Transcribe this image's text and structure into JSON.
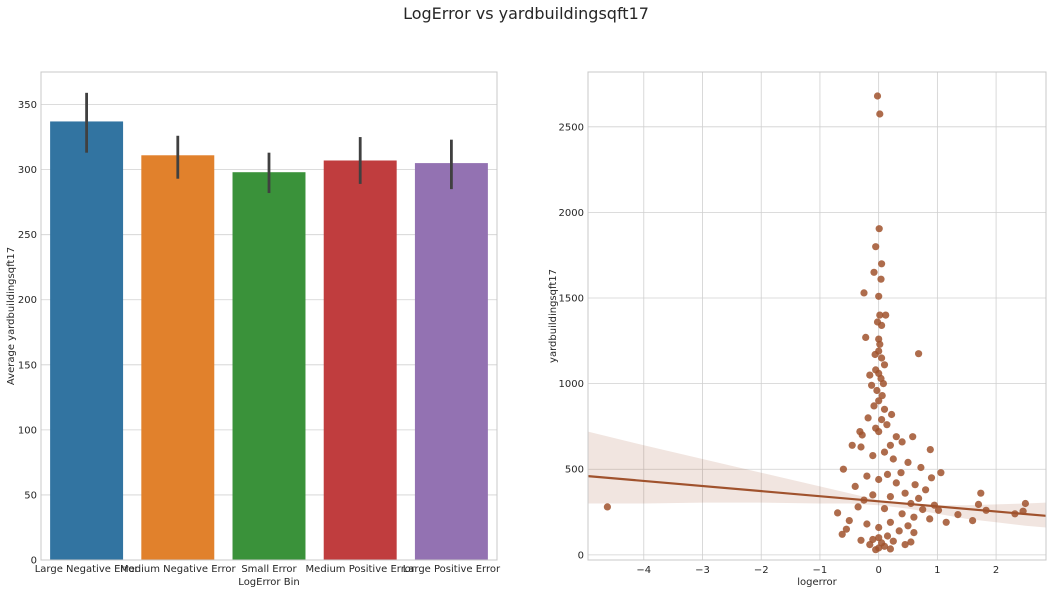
{
  "title": "LogError vs yardbuildingsqft17",
  "chart_data": [
    {
      "type": "bar",
      "xlabel": "LogError Bin",
      "ylabel": "Average yardbuildingsqft17",
      "ylim": [
        0,
        375
      ],
      "yticks": [
        0,
        50,
        100,
        150,
        200,
        250,
        300,
        350
      ],
      "grid": true,
      "categories": [
        "Large Negative Error",
        "Medium Negative Error",
        "Small Error",
        "Medium Positive Error",
        "Large Positive Error"
      ],
      "values": [
        337,
        311,
        298,
        307,
        305
      ],
      "ci_low": [
        313,
        293,
        282,
        289,
        285
      ],
      "ci_high": [
        359,
        326,
        313,
        325,
        323
      ],
      "colors": [
        "#3274a1",
        "#e1812c",
        "#3a923a",
        "#c03d3e",
        "#9372b2"
      ],
      "errorbar_color": "#404040"
    },
    {
      "type": "scatter",
      "xlabel": "logerror",
      "ylabel": "yardbuildingsqft17",
      "xlim": [
        -4.95,
        2.85
      ],
      "ylim": [
        -30,
        2820
      ],
      "xticks": [
        -4,
        -3,
        -2,
        -1,
        0,
        1,
        2
      ],
      "yticks": [
        0,
        500,
        1000,
        1500,
        2000,
        2500
      ],
      "grid": true,
      "color": "#a0522d",
      "regression": {
        "x": [
          -4.95,
          2.85
        ],
        "y": [
          460,
          228
        ]
      },
      "confidence_band": {
        "x": [
          -4.95,
          -4,
          -3,
          -2,
          -1,
          -0.5,
          0,
          0.5,
          1,
          1.5,
          2,
          2.5,
          2.85
        ],
        "upper": [
          720,
          640,
          560,
          480,
          400,
          360,
          320,
          300,
          290,
          290,
          295,
          300,
          305
        ],
        "lower": [
          300,
          300,
          305,
          305,
          300,
          300,
          290,
          270,
          240,
          210,
          190,
          170,
          160
        ]
      },
      "points": [
        [
          -0.02,
          2680
        ],
        [
          0.02,
          2575
        ],
        [
          0.01,
          1905
        ],
        [
          -0.05,
          1800
        ],
        [
          0.05,
          1700
        ],
        [
          0.04,
          1610
        ],
        [
          -0.08,
          1650
        ],
        [
          -0.25,
          1530
        ],
        [
          0.0,
          1510
        ],
        [
          0.02,
          1400
        ],
        [
          0.12,
          1400
        ],
        [
          -0.02,
          1360
        ],
        [
          0.05,
          1340
        ],
        [
          -0.22,
          1270
        ],
        [
          0.0,
          1260
        ],
        [
          0.02,
          1230
        ],
        [
          0.68,
          1175
        ],
        [
          0.0,
          1190
        ],
        [
          -0.06,
          1170
        ],
        [
          0.05,
          1150
        ],
        [
          0.1,
          1110
        ],
        [
          -0.05,
          1080
        ],
        [
          0.0,
          1060
        ],
        [
          -0.15,
          1050
        ],
        [
          0.04,
          1030
        ],
        [
          0.08,
          1000
        ],
        [
          -0.12,
          990
        ],
        [
          -0.03,
          960
        ],
        [
          0.06,
          930
        ],
        [
          0.0,
          900
        ],
        [
          -0.08,
          870
        ],
        [
          0.1,
          850
        ],
        [
          0.22,
          820
        ],
        [
          -0.18,
          800
        ],
        [
          0.05,
          790
        ],
        [
          0.14,
          760
        ],
        [
          -0.05,
          740
        ],
        [
          0.0,
          720
        ],
        [
          -0.32,
          720
        ],
        [
          -0.28,
          700
        ],
        [
          0.3,
          690
        ],
        [
          0.58,
          690
        ],
        [
          0.4,
          660
        ],
        [
          0.2,
          640
        ],
        [
          -0.45,
          640
        ],
        [
          -0.3,
          630
        ],
        [
          0.88,
          615
        ],
        [
          0.1,
          600
        ],
        [
          -0.1,
          580
        ],
        [
          0.25,
          560
        ],
        [
          0.5,
          540
        ],
        [
          0.72,
          510
        ],
        [
          -0.6,
          500
        ],
        [
          0.38,
          480
        ],
        [
          0.15,
          470
        ],
        [
          1.06,
          480
        ],
        [
          -0.2,
          460
        ],
        [
          0.9,
          450
        ],
        [
          0.0,
          440
        ],
        [
          0.3,
          420
        ],
        [
          0.62,
          410
        ],
        [
          -0.4,
          400
        ],
        [
          0.8,
          380
        ],
        [
          0.45,
          360
        ],
        [
          1.74,
          360
        ],
        [
          -0.1,
          350
        ],
        [
          0.2,
          340
        ],
        [
          0.68,
          330
        ],
        [
          -0.25,
          320
        ],
        [
          0.55,
          300
        ],
        [
          2.5,
          300
        ],
        [
          1.7,
          295
        ],
        [
          0.95,
          290
        ],
        [
          -0.35,
          280
        ],
        [
          0.1,
          270
        ],
        [
          0.75,
          265
        ],
        [
          1.02,
          260
        ],
        [
          1.83,
          260
        ],
        [
          2.46,
          255
        ],
        [
          2.32,
          240
        ],
        [
          -0.7,
          245
        ],
        [
          -4.62,
          280
        ],
        [
          0.4,
          240
        ],
        [
          1.35,
          235
        ],
        [
          0.6,
          220
        ],
        [
          0.87,
          210
        ],
        [
          1.6,
          200
        ],
        [
          -0.5,
          200
        ],
        [
          0.2,
          190
        ],
        [
          1.15,
          190
        ],
        [
          -0.2,
          180
        ],
        [
          0.5,
          170
        ],
        [
          0.0,
          160
        ],
        [
          -0.55,
          150
        ],
        [
          0.35,
          140
        ],
        [
          0.6,
          130
        ],
        [
          -0.62,
          120
        ],
        [
          0.15,
          110
        ],
        [
          0.0,
          100
        ],
        [
          -0.1,
          90
        ],
        [
          0.25,
          80
        ],
        [
          0.05,
          70
        ],
        [
          -0.15,
          60
        ],
        [
          0.1,
          50
        ],
        [
          0.0,
          40
        ],
        [
          0.2,
          35
        ],
        [
          -0.05,
          30
        ],
        [
          0.45,
          60
        ],
        [
          0.55,
          75
        ],
        [
          -0.3,
          85
        ]
      ]
    }
  ]
}
